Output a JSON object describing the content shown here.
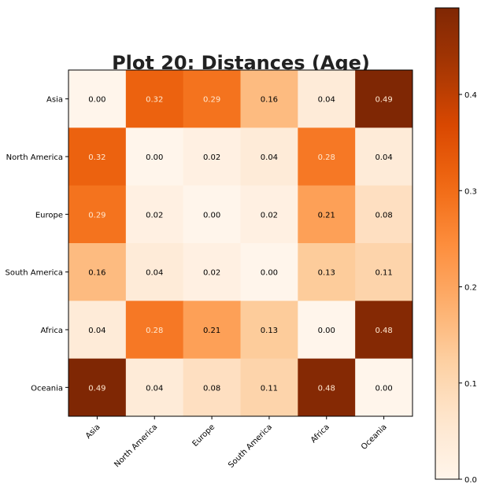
{
  "chart_data": {
    "type": "heatmap",
    "title": "Plot 20: Distances (Age)",
    "rows": [
      "Asia",
      "North America",
      "Europe",
      "South America",
      "Africa",
      "Oceania"
    ],
    "columns": [
      "Asia",
      "North America",
      "Europe",
      "South America",
      "Africa",
      "Oceania"
    ],
    "values": [
      [
        0.0,
        0.32,
        0.29,
        0.16,
        0.04,
        0.49
      ],
      [
        0.32,
        0.0,
        0.02,
        0.04,
        0.28,
        0.04
      ],
      [
        0.29,
        0.02,
        0.0,
        0.02,
        0.21,
        0.08
      ],
      [
        0.16,
        0.04,
        0.02,
        0.0,
        0.13,
        0.11
      ],
      [
        0.04,
        0.28,
        0.21,
        0.13,
        0.0,
        0.48
      ],
      [
        0.49,
        0.04,
        0.08,
        0.11,
        0.48,
        0.0
      ]
    ],
    "value_range": [
      0,
      0.49
    ],
    "colormap": "Oranges",
    "colors": {
      "low": "#fff5eb",
      "mid": "#f06d1e",
      "high": "#7f2704"
    },
    "colorbar": {
      "ticks": [
        0.0,
        0.1,
        0.2,
        0.3,
        0.4
      ],
      "tick_labels": [
        "0.0",
        "0.1",
        "0.2",
        "0.3",
        "0.4"
      ],
      "placement": "right"
    },
    "x_tick_rotation": 45,
    "grid": false
  }
}
